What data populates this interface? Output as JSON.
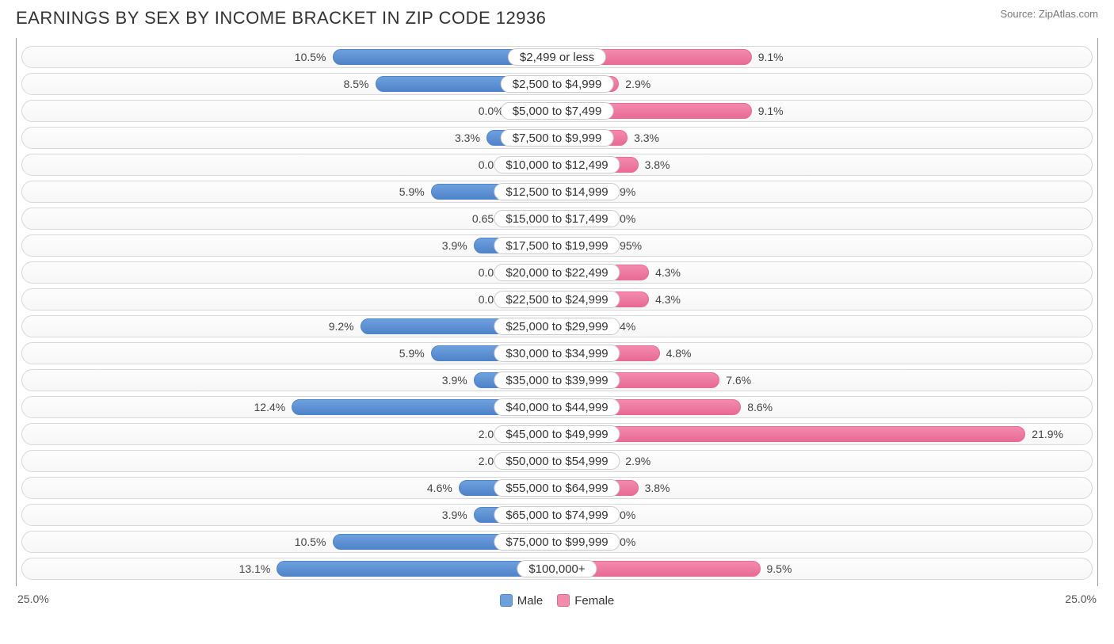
{
  "title": "EARNINGS BY SEX BY INCOME BRACKET IN ZIP CODE 12936",
  "source": "Source: ZipAtlas.com",
  "chart": {
    "type": "diverging-bar",
    "axis_max_percent": 25.0,
    "axis_label_left": "25.0%",
    "axis_label_right": "25.0%",
    "colors": {
      "male_fill": "#6fa0de",
      "male_border": "#4f84c9",
      "female_fill": "#f38bad",
      "female_border": "#e86a95",
      "track_border": "#d8d8d8",
      "track_bg_top": "#fdfdfd",
      "track_bg_bottom": "#f7f7f7",
      "text": "#444444",
      "category_pill_bg": "#ffffff",
      "category_pill_border": "#cccccc"
    },
    "legend": {
      "male": "Male",
      "female": "Female"
    },
    "rows": [
      {
        "category": "$2,499 or less",
        "male": 10.5,
        "female": 9.1,
        "male_label": "10.5%",
        "female_label": "9.1%"
      },
      {
        "category": "$2,500 to $4,999",
        "male": 8.5,
        "female": 2.9,
        "male_label": "8.5%",
        "female_label": "2.9%"
      },
      {
        "category": "$5,000 to $7,499",
        "male": 0.0,
        "female": 9.1,
        "male_label": "0.0%",
        "female_label": "9.1%"
      },
      {
        "category": "$7,500 to $9,999",
        "male": 3.3,
        "female": 3.3,
        "male_label": "3.3%",
        "female_label": "3.3%"
      },
      {
        "category": "$10,000 to $12,499",
        "male": 0.0,
        "female": 3.8,
        "male_label": "0.0%",
        "female_label": "3.8%"
      },
      {
        "category": "$12,500 to $14,999",
        "male": 5.9,
        "female": 1.9,
        "male_label": "5.9%",
        "female_label": "1.9%"
      },
      {
        "category": "$15,000 to $17,499",
        "male": 0.65,
        "female": 0.0,
        "male_label": "0.65%",
        "female_label": "0.0%"
      },
      {
        "category": "$17,500 to $19,999",
        "male": 3.9,
        "female": 0.95,
        "male_label": "3.9%",
        "female_label": "0.95%"
      },
      {
        "category": "$20,000 to $22,499",
        "male": 0.0,
        "female": 4.3,
        "male_label": "0.0%",
        "female_label": "4.3%"
      },
      {
        "category": "$22,500 to $24,999",
        "male": 0.0,
        "female": 4.3,
        "male_label": "0.0%",
        "female_label": "4.3%"
      },
      {
        "category": "$25,000 to $29,999",
        "male": 9.2,
        "female": 1.4,
        "male_label": "9.2%",
        "female_label": "1.4%"
      },
      {
        "category": "$30,000 to $34,999",
        "male": 5.9,
        "female": 4.8,
        "male_label": "5.9%",
        "female_label": "4.8%"
      },
      {
        "category": "$35,000 to $39,999",
        "male": 3.9,
        "female": 7.6,
        "male_label": "3.9%",
        "female_label": "7.6%"
      },
      {
        "category": "$40,000 to $44,999",
        "male": 12.4,
        "female": 8.6,
        "male_label": "12.4%",
        "female_label": "8.6%"
      },
      {
        "category": "$45,000 to $49,999",
        "male": 2.0,
        "female": 21.9,
        "male_label": "2.0%",
        "female_label": "21.9%"
      },
      {
        "category": "$50,000 to $54,999",
        "male": 2.0,
        "female": 2.9,
        "male_label": "2.0%",
        "female_label": "2.9%"
      },
      {
        "category": "$55,000 to $64,999",
        "male": 4.6,
        "female": 3.8,
        "male_label": "4.6%",
        "female_label": "3.8%"
      },
      {
        "category": "$65,000 to $74,999",
        "male": 3.9,
        "female": 0.0,
        "male_label": "3.9%",
        "female_label": "0.0%"
      },
      {
        "category": "$75,000 to $99,999",
        "male": 10.5,
        "female": 0.0,
        "male_label": "10.5%",
        "female_label": "0.0%"
      },
      {
        "category": "$100,000+",
        "male": 13.1,
        "female": 9.5,
        "male_label": "13.1%",
        "female_label": "9.5%"
      }
    ],
    "min_bar_percent": 2.2
  }
}
